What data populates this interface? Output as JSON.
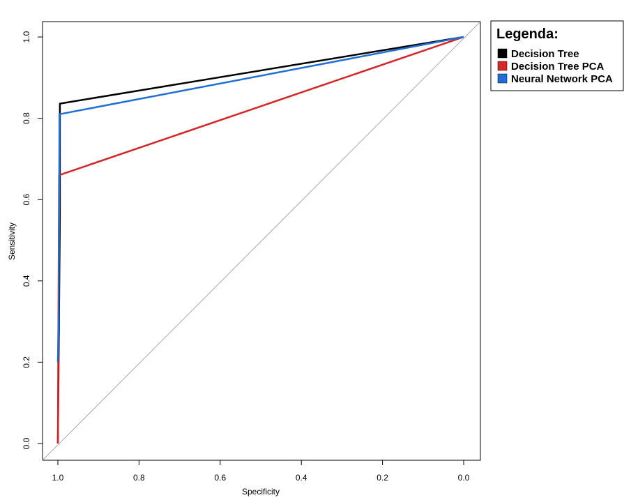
{
  "chart_data": {
    "type": "line",
    "title": "",
    "xlabel": "Specificity",
    "ylabel": "Sensitivity",
    "x_reversed": true,
    "xlim": [
      1.0,
      0.0
    ],
    "ylim": [
      0.0,
      1.0
    ],
    "x_ticks": [
      {
        "value": 1.0,
        "label": "1.0"
      },
      {
        "value": 0.8,
        "label": "0.8"
      },
      {
        "value": 0.6,
        "label": "0.6"
      },
      {
        "value": 0.4,
        "label": "0.4"
      },
      {
        "value": 0.2,
        "label": "0.2"
      },
      {
        "value": 0.0,
        "label": "0.0"
      }
    ],
    "y_ticks": [
      {
        "value": 0.0,
        "label": "0.0"
      },
      {
        "value": 0.2,
        "label": "0.2"
      },
      {
        "value": 0.4,
        "label": "0.4"
      },
      {
        "value": 0.6,
        "label": "0.6"
      },
      {
        "value": 0.8,
        "label": "0.8"
      },
      {
        "value": 1.0,
        "label": "1.0"
      }
    ],
    "grid": false,
    "diagonal_reference": true,
    "legend": {
      "title": "Legenda:",
      "placement": "outside-top-right"
    },
    "series": [
      {
        "name": "Decision Tree",
        "color": "#000000",
        "points": [
          {
            "x": 1.0,
            "y": 0.0
          },
          {
            "x": 0.995,
            "y": 0.56
          },
          {
            "x": 0.995,
            "y": 0.836
          },
          {
            "x": 0.0,
            "y": 1.0
          }
        ]
      },
      {
        "name": "Decision Tree PCA",
        "color": "#d62728",
        "points": [
          {
            "x": 1.0,
            "y": 0.0
          },
          {
            "x": 0.997,
            "y": 0.66
          },
          {
            "x": 0.0,
            "y": 1.0
          }
        ]
      },
      {
        "name": "Neural Network PCA",
        "color": "#1f6fd6",
        "points": [
          {
            "x": 1.0,
            "y": 0.2
          },
          {
            "x": 0.998,
            "y": 0.33
          },
          {
            "x": 0.996,
            "y": 0.81
          },
          {
            "x": 0.0,
            "y": 1.0
          }
        ]
      }
    ]
  }
}
